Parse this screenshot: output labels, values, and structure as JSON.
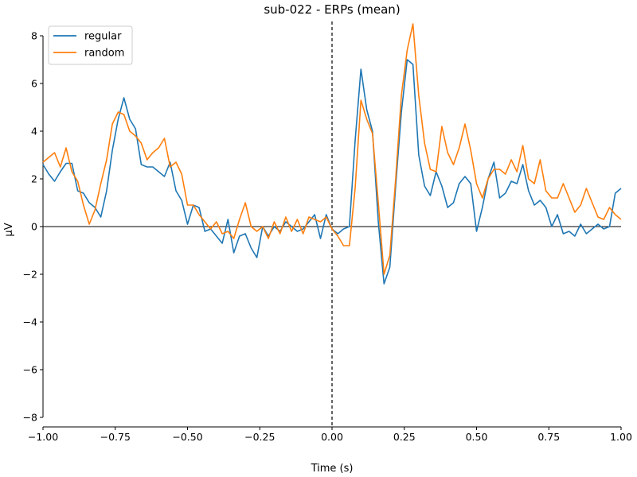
{
  "chart_data": {
    "type": "line",
    "title": "sub-022 - ERPs (mean)",
    "xlabel": "Time (s)",
    "ylabel": "µV",
    "xlim": [
      -1.0,
      1.0
    ],
    "ylim": [
      -8.4,
      8.6
    ],
    "x_ticks": [
      "−1.00",
      "−0.75",
      "−0.50",
      "−0.25",
      "0.00",
      "0.25",
      "0.50",
      "0.75",
      "1.00"
    ],
    "x_tick_values": [
      -1.0,
      -0.75,
      -0.5,
      -0.25,
      0.0,
      0.25,
      0.5,
      0.75,
      1.0
    ],
    "y_ticks": [
      "−8",
      "−6",
      "−4",
      "−2",
      "0",
      "2",
      "4",
      "6",
      "8"
    ],
    "y_tick_values": [
      -8,
      -6,
      -4,
      -2,
      0,
      2,
      4,
      6,
      8
    ],
    "grid": false,
    "legend_position": "top-left",
    "reference_lines": {
      "horizontal_zero": true,
      "vertical_zero_dashed": true
    },
    "series": [
      {
        "name": "regular",
        "color": "#1f77b4",
        "points": [
          [
            -1.0,
            2.6
          ],
          [
            -0.98,
            2.2
          ],
          [
            -0.96,
            1.9
          ],
          [
            -0.94,
            2.3
          ],
          [
            -0.92,
            2.65
          ],
          [
            -0.9,
            2.65
          ],
          [
            -0.88,
            1.5
          ],
          [
            -0.86,
            1.4
          ],
          [
            -0.84,
            1.0
          ],
          [
            -0.82,
            0.8
          ],
          [
            -0.8,
            0.4
          ],
          [
            -0.78,
            1.5
          ],
          [
            -0.76,
            3.2
          ],
          [
            -0.74,
            4.5
          ],
          [
            -0.72,
            5.4
          ],
          [
            -0.7,
            4.5
          ],
          [
            -0.68,
            4.1
          ],
          [
            -0.66,
            2.6
          ],
          [
            -0.64,
            2.5
          ],
          [
            -0.62,
            2.5
          ],
          [
            -0.6,
            2.3
          ],
          [
            -0.58,
            2.1
          ],
          [
            -0.56,
            2.7
          ],
          [
            -0.54,
            1.5
          ],
          [
            -0.52,
            1.1
          ],
          [
            -0.5,
            0.1
          ],
          [
            -0.48,
            0.9
          ],
          [
            -0.46,
            0.8
          ],
          [
            -0.44,
            -0.2
          ],
          [
            -0.42,
            -0.1
          ],
          [
            -0.4,
            -0.4
          ],
          [
            -0.38,
            -0.7
          ],
          [
            -0.36,
            0.3
          ],
          [
            -0.34,
            -1.1
          ],
          [
            -0.32,
            -0.4
          ],
          [
            -0.3,
            -0.3
          ],
          [
            -0.28,
            -0.9
          ],
          [
            -0.26,
            -1.3
          ],
          [
            -0.24,
            0.0
          ],
          [
            -0.22,
            -0.4
          ],
          [
            -0.2,
            0.0
          ],
          [
            -0.18,
            -0.2
          ],
          [
            -0.16,
            0.2
          ],
          [
            -0.14,
            0.0
          ],
          [
            -0.12,
            -0.2
          ],
          [
            -0.1,
            -0.1
          ],
          [
            -0.08,
            0.2
          ],
          [
            -0.06,
            0.5
          ],
          [
            -0.04,
            -0.5
          ],
          [
            -0.02,
            0.5
          ],
          [
            0.0,
            -0.1
          ],
          [
            0.02,
            -0.3
          ],
          [
            0.04,
            -0.1
          ],
          [
            0.06,
            0.0
          ],
          [
            0.08,
            3.6
          ],
          [
            0.1,
            6.6
          ],
          [
            0.12,
            4.9
          ],
          [
            0.14,
            4.0
          ],
          [
            0.16,
            0.2
          ],
          [
            0.18,
            -2.4
          ],
          [
            0.2,
            -1.7
          ],
          [
            0.22,
            1.7
          ],
          [
            0.24,
            4.8
          ],
          [
            0.26,
            7.0
          ],
          [
            0.28,
            6.8
          ],
          [
            0.3,
            3.0
          ],
          [
            0.32,
            1.7
          ],
          [
            0.34,
            1.3
          ],
          [
            0.36,
            2.3
          ],
          [
            0.38,
            1.7
          ],
          [
            0.4,
            0.8
          ],
          [
            0.42,
            1.0
          ],
          [
            0.44,
            1.8
          ],
          [
            0.46,
            2.1
          ],
          [
            0.48,
            1.8
          ],
          [
            0.5,
            -0.2
          ],
          [
            0.52,
            0.8
          ],
          [
            0.54,
            2.0
          ],
          [
            0.56,
            2.7
          ],
          [
            0.58,
            1.2
          ],
          [
            0.6,
            1.4
          ],
          [
            0.62,
            1.9
          ],
          [
            0.64,
            1.8
          ],
          [
            0.66,
            2.6
          ],
          [
            0.68,
            1.5
          ],
          [
            0.7,
            0.9
          ],
          [
            0.72,
            1.1
          ],
          [
            0.74,
            0.8
          ],
          [
            0.76,
            0.0
          ],
          [
            0.78,
            0.5
          ],
          [
            0.8,
            -0.3
          ],
          [
            0.82,
            -0.2
          ],
          [
            0.84,
            -0.4
          ],
          [
            0.86,
            0.1
          ],
          [
            0.88,
            -0.3
          ],
          [
            0.9,
            -0.1
          ],
          [
            0.92,
            0.1
          ],
          [
            0.94,
            -0.1
          ],
          [
            0.96,
            0.0
          ],
          [
            0.98,
            1.4
          ],
          [
            1.0,
            1.6
          ]
        ]
      },
      {
        "name": "random",
        "color": "#ff7f0e",
        "points": [
          [
            -1.0,
            2.7
          ],
          [
            -0.98,
            2.9
          ],
          [
            -0.96,
            3.1
          ],
          [
            -0.94,
            2.5
          ],
          [
            -0.92,
            3.3
          ],
          [
            -0.9,
            2.3
          ],
          [
            -0.88,
            1.9
          ],
          [
            -0.86,
            0.9
          ],
          [
            -0.84,
            0.1
          ],
          [
            -0.82,
            0.7
          ],
          [
            -0.8,
            1.8
          ],
          [
            -0.78,
            2.8
          ],
          [
            -0.76,
            4.3
          ],
          [
            -0.74,
            4.8
          ],
          [
            -0.72,
            4.7
          ],
          [
            -0.7,
            4.0
          ],
          [
            -0.68,
            3.8
          ],
          [
            -0.66,
            3.5
          ],
          [
            -0.64,
            2.8
          ],
          [
            -0.62,
            3.1
          ],
          [
            -0.6,
            3.3
          ],
          [
            -0.58,
            3.7
          ],
          [
            -0.56,
            2.5
          ],
          [
            -0.54,
            2.7
          ],
          [
            -0.52,
            2.2
          ],
          [
            -0.5,
            0.9
          ],
          [
            -0.48,
            0.9
          ],
          [
            -0.46,
            0.5
          ],
          [
            -0.44,
            0.2
          ],
          [
            -0.42,
            -0.1
          ],
          [
            -0.4,
            0.2
          ],
          [
            -0.38,
            -0.3
          ],
          [
            -0.36,
            -0.2
          ],
          [
            -0.34,
            -0.5
          ],
          [
            -0.32,
            0.3
          ],
          [
            -0.3,
            1.0
          ],
          [
            -0.28,
            0.0
          ],
          [
            -0.26,
            -0.2
          ],
          [
            -0.24,
            0.0
          ],
          [
            -0.22,
            -0.5
          ],
          [
            -0.2,
            0.2
          ],
          [
            -0.18,
            -0.3
          ],
          [
            -0.16,
            0.4
          ],
          [
            -0.14,
            -0.2
          ],
          [
            -0.12,
            0.3
          ],
          [
            -0.1,
            -0.3
          ],
          [
            -0.08,
            0.4
          ],
          [
            -0.06,
            0.3
          ],
          [
            -0.04,
            0.2
          ],
          [
            -0.02,
            0.4
          ],
          [
            0.0,
            -0.1
          ],
          [
            0.02,
            -0.4
          ],
          [
            0.04,
            -0.8
          ],
          [
            0.06,
            -0.8
          ],
          [
            0.08,
            1.6
          ],
          [
            0.1,
            5.3
          ],
          [
            0.12,
            4.5
          ],
          [
            0.14,
            3.9
          ],
          [
            0.16,
            1.0
          ],
          [
            0.18,
            -2.0
          ],
          [
            0.2,
            -1.2
          ],
          [
            0.22,
            2.0
          ],
          [
            0.24,
            5.5
          ],
          [
            0.26,
            7.4
          ],
          [
            0.28,
            8.5
          ],
          [
            0.3,
            5.5
          ],
          [
            0.32,
            3.5
          ],
          [
            0.34,
            2.4
          ],
          [
            0.36,
            2.3
          ],
          [
            0.38,
            4.2
          ],
          [
            0.4,
            3.1
          ],
          [
            0.42,
            2.6
          ],
          [
            0.44,
            3.3
          ],
          [
            0.46,
            4.3
          ],
          [
            0.48,
            3.2
          ],
          [
            0.5,
            1.8
          ],
          [
            0.52,
            1.2
          ],
          [
            0.54,
            2.0
          ],
          [
            0.56,
            2.4
          ],
          [
            0.58,
            2.4
          ],
          [
            0.6,
            2.2
          ],
          [
            0.62,
            2.8
          ],
          [
            0.64,
            2.3
          ],
          [
            0.66,
            3.4
          ],
          [
            0.68,
            2.0
          ],
          [
            0.7,
            1.8
          ],
          [
            0.72,
            2.8
          ],
          [
            0.74,
            1.5
          ],
          [
            0.76,
            1.2
          ],
          [
            0.78,
            1.2
          ],
          [
            0.8,
            1.8
          ],
          [
            0.82,
            1.2
          ],
          [
            0.84,
            0.6
          ],
          [
            0.86,
            0.9
          ],
          [
            0.88,
            1.6
          ],
          [
            0.9,
            1.0
          ],
          [
            0.92,
            0.4
          ],
          [
            0.94,
            0.3
          ],
          [
            0.96,
            0.8
          ],
          [
            0.98,
            0.5
          ],
          [
            1.0,
            0.3
          ]
        ]
      }
    ]
  }
}
